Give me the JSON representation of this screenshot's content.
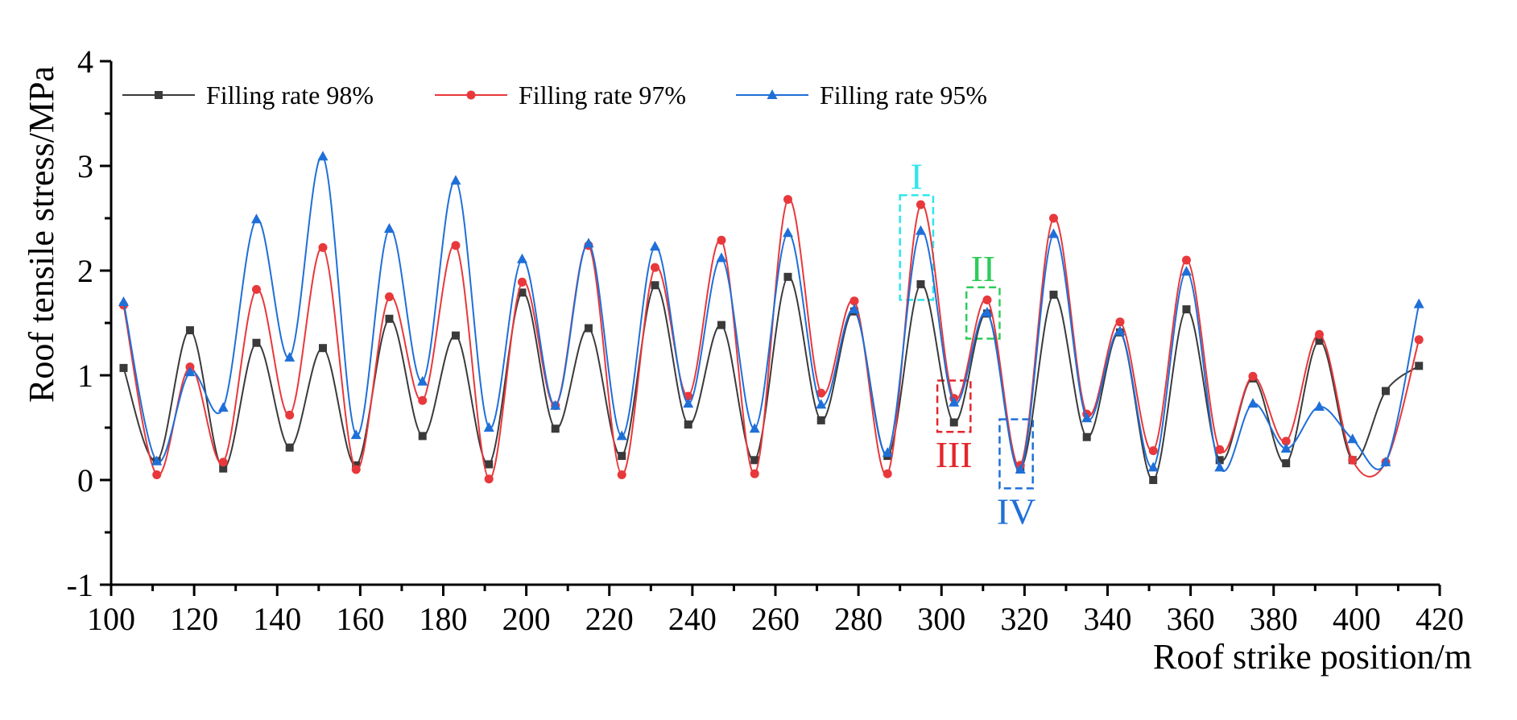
{
  "chart_data": {
    "type": "line",
    "title": "",
    "xlabel": "Roof strike position/m",
    "ylabel": "Roof tensile stress/MPa",
    "xlim": [
      100,
      420
    ],
    "ylim": [
      -1,
      4
    ],
    "xticks": [
      100,
      120,
      140,
      160,
      180,
      200,
      220,
      240,
      260,
      280,
      300,
      320,
      340,
      360,
      380,
      400,
      420
    ],
    "yticks": [
      -1,
      0,
      1,
      2,
      3,
      4
    ],
    "xtick_labels": [
      "100",
      "120",
      "140",
      "160",
      "180",
      "200",
      "220",
      "240",
      "260",
      "280",
      "300",
      "320",
      "340",
      "360",
      "380",
      "400",
      "420"
    ],
    "ytick_labels": [
      "-1",
      "0",
      "1",
      "2",
      "3",
      "4"
    ],
    "grid": false,
    "legend_position": "top-left",
    "x": [
      103,
      111,
      119,
      127,
      135,
      143,
      151,
      159,
      167,
      175,
      183,
      191,
      199,
      207,
      215,
      223,
      231,
      239,
      247,
      255,
      263,
      271,
      279,
      287,
      295,
      303,
      311,
      319,
      327,
      335,
      343,
      351,
      359,
      367,
      375,
      383,
      391,
      399,
      407,
      415
    ],
    "series": [
      {
        "name": "Filling rate 98%",
        "label": "Filling rate 98%",
        "color": "#3a3a3a",
        "marker": "square",
        "values": [
          1.07,
          0.18,
          1.43,
          0.11,
          1.31,
          0.31,
          1.26,
          0.14,
          1.54,
          0.42,
          1.38,
          0.15,
          1.79,
          0.49,
          1.45,
          0.23,
          1.86,
          0.53,
          1.48,
          0.19,
          1.94,
          0.57,
          1.61,
          0.23,
          1.87,
          0.55,
          1.59,
          0.11,
          1.77,
          0.41,
          1.41,
          0.0,
          1.63,
          0.19,
          0.97,
          0.16,
          1.33,
          0.19,
          0.85,
          1.09
        ]
      },
      {
        "name": "Filling rate 97%",
        "label": "Filling rate 97%",
        "color": "#e8383b",
        "marker": "circle",
        "values": [
          1.67,
          0.05,
          1.08,
          0.17,
          1.82,
          0.62,
          2.22,
          0.1,
          1.75,
          0.76,
          2.24,
          0.01,
          1.89,
          0.71,
          2.24,
          0.05,
          2.03,
          0.8,
          2.29,
          0.06,
          2.68,
          0.83,
          1.71,
          0.06,
          2.63,
          0.78,
          1.72,
          0.14,
          2.5,
          0.63,
          1.51,
          0.28,
          2.1,
          0.29,
          0.99,
          0.37,
          1.39,
          0.19,
          0.17,
          1.34
        ]
      },
      {
        "name": "Filling rate 95%",
        "label": "Filling rate 95%",
        "color": "#1f6fd8",
        "marker": "triangle",
        "values": [
          1.7,
          0.18,
          1.03,
          0.69,
          2.49,
          1.17,
          3.09,
          0.43,
          2.4,
          0.94,
          2.86,
          0.5,
          2.11,
          0.71,
          2.26,
          0.42,
          2.23,
          0.73,
          2.12,
          0.49,
          2.36,
          0.72,
          1.63,
          0.26,
          2.38,
          0.74,
          1.6,
          0.1,
          2.35,
          0.59,
          1.42,
          0.12,
          1.99,
          0.12,
          0.73,
          0.3,
          0.7,
          0.39,
          0.17,
          1.68
        ]
      }
    ],
    "annotations": [
      {
        "name": "region-I",
        "text": "I",
        "color": "#2ee6ee",
        "x0": 290,
        "x1": 298,
        "y0": 1.72,
        "y1": 2.72,
        "label_pos": "above"
      },
      {
        "name": "region-II",
        "text": "II",
        "color": "#2ecc5a",
        "x0": 306,
        "x1": 314,
        "y0": 1.35,
        "y1": 1.84,
        "label_pos": "above"
      },
      {
        "name": "region-III",
        "text": "III",
        "color": "#e3262b",
        "x0": 299,
        "x1": 307,
        "y0": 0.46,
        "y1": 0.95,
        "label_pos": "below"
      },
      {
        "name": "region-IV",
        "text": "IV",
        "color": "#1f6fd8",
        "x0": 314,
        "x1": 322,
        "y0": -0.08,
        "y1": 0.58,
        "label_pos": "below"
      }
    ]
  }
}
